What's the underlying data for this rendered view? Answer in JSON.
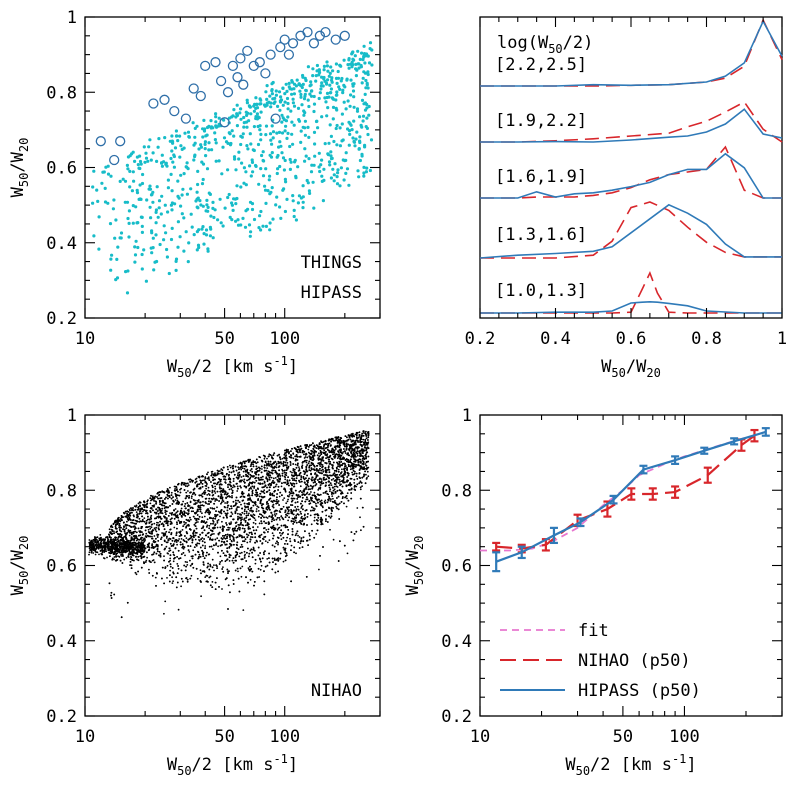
{
  "colors": {
    "things": "#2f6fa8",
    "hipass": "#17bcc8",
    "nihao_red": "#d8262b",
    "hipass_blue": "#2f7ab8",
    "fit": "#e777cf",
    "nihao_pts": "#000000"
  },
  "chart_data": [
    {
      "type": "scatter",
      "panel": "top-left",
      "xscale": "log",
      "xlim": [
        10,
        300
      ],
      "ylim": [
        0.2,
        1.0
      ],
      "xticks": [
        "10",
        "50",
        "100"
      ],
      "yticks": [
        "0.2",
        "0.4",
        "0.6",
        "0.8",
        "1"
      ],
      "xlabel": "W50/2 [km s-1]",
      "ylabel": "W50/W20",
      "legend": [
        "THINGS",
        "HIPASS"
      ],
      "series": [
        {
          "name": "THINGS",
          "marker": "open-circle",
          "x": [
            12,
            14,
            15,
            22,
            25,
            28,
            32,
            35,
            38,
            40,
            45,
            48,
            50,
            52,
            55,
            58,
            60,
            62,
            65,
            70,
            75,
            80,
            85,
            90,
            95,
            100,
            105,
            110,
            120,
            130,
            140,
            150,
            160,
            180,
            200
          ],
          "y": [
            0.67,
            0.62,
            0.67,
            0.77,
            0.78,
            0.75,
            0.73,
            0.81,
            0.79,
            0.87,
            0.88,
            0.83,
            0.72,
            0.8,
            0.87,
            0.84,
            0.89,
            0.82,
            0.91,
            0.87,
            0.88,
            0.85,
            0.9,
            0.73,
            0.92,
            0.94,
            0.9,
            0.93,
            0.95,
            0.96,
            0.93,
            0.95,
            0.96,
            0.94,
            0.95
          ]
        },
        {
          "name": "HIPASS",
          "marker": "dot",
          "x": [],
          "y": [],
          "note": "dense cloud of small cyan points"
        }
      ]
    },
    {
      "type": "line",
      "panel": "top-right",
      "xlim": [
        0.2,
        1.0
      ],
      "xticks": [
        "0.2",
        "0.4",
        "0.6",
        "0.8",
        "1"
      ],
      "xlabel": "W50/W20",
      "header": "log(W50/2)",
      "bins": [
        {
          "label": "[2.2,2.5]",
          "x": [
            0.2,
            0.3,
            0.4,
            0.5,
            0.6,
            0.7,
            0.8,
            0.85,
            0.9,
            0.95,
            1.0
          ],
          "nihao": [
            0.0,
            0.0,
            0.0,
            0.0,
            0.01,
            0.02,
            0.06,
            0.12,
            0.3,
            1.0,
            0.4
          ],
          "hipass": [
            0.0,
            0.0,
            0.0,
            0.02,
            0.01,
            0.02,
            0.06,
            0.15,
            0.35,
            0.98,
            0.45
          ]
        },
        {
          "label": "[1.9,2.2]",
          "x": [
            0.2,
            0.3,
            0.4,
            0.5,
            0.6,
            0.7,
            0.75,
            0.8,
            0.85,
            0.9,
            0.95,
            1.0
          ],
          "nihao": [
            0.0,
            0.0,
            0.03,
            0.08,
            0.15,
            0.22,
            0.38,
            0.52,
            0.75,
            1.0,
            0.32,
            0.0
          ],
          "hipass": [
            0.0,
            0.0,
            0.01,
            0.0,
            0.05,
            0.12,
            0.15,
            0.25,
            0.45,
            0.82,
            0.2,
            0.1
          ]
        },
        {
          "label": "[1.6,1.9]",
          "x": [
            0.2,
            0.3,
            0.35,
            0.4,
            0.45,
            0.5,
            0.55,
            0.6,
            0.65,
            0.7,
            0.75,
            0.8,
            0.85,
            0.9,
            0.95,
            1.0
          ],
          "nihao": [
            0.0,
            0.0,
            0.02,
            0.02,
            0.02,
            0.05,
            0.1,
            0.2,
            0.35,
            0.45,
            0.5,
            0.55,
            0.98,
            0.15,
            0.0,
            0.0
          ],
          "hipass": [
            0.0,
            0.0,
            0.12,
            0.02,
            0.08,
            0.1,
            0.15,
            0.22,
            0.3,
            0.45,
            0.55,
            0.55,
            0.85,
            0.58,
            0.0,
            0.0
          ]
        },
        {
          "label": "[1.3,1.6]",
          "x": [
            0.2,
            0.3,
            0.4,
            0.5,
            0.55,
            0.6,
            0.65,
            0.7,
            0.75,
            0.8,
            0.85,
            0.9,
            1.0
          ],
          "nihao": [
            0.0,
            0.0,
            0.0,
            0.05,
            0.3,
            0.9,
            1.0,
            0.85,
            0.55,
            0.28,
            0.1,
            0.02,
            0.02
          ],
          "hipass": [
            0.0,
            0.05,
            0.08,
            0.12,
            0.2,
            0.45,
            0.7,
            0.95,
            0.8,
            0.6,
            0.25,
            0.02,
            0.02
          ]
        },
        {
          "label": "[1.0,1.3]",
          "x": [
            0.2,
            0.3,
            0.4,
            0.5,
            0.55,
            0.6,
            0.63,
            0.65,
            0.67,
            0.7,
            0.75,
            0.8,
            0.9,
            1.0
          ],
          "nihao": [
            0.0,
            0.0,
            0.0,
            0.0,
            0.0,
            0.02,
            0.6,
            1.0,
            0.5,
            0.02,
            0.0,
            0.0,
            0.0,
            0.0
          ],
          "hipass": [
            0.0,
            0.0,
            0.02,
            0.02,
            0.05,
            0.25,
            0.27,
            0.28,
            0.27,
            0.24,
            0.18,
            0.05,
            0.0,
            0.0
          ]
        }
      ]
    },
    {
      "type": "scatter",
      "panel": "bottom-left",
      "xscale": "log",
      "xlim": [
        10,
        300
      ],
      "ylim": [
        0.2,
        1.0
      ],
      "xticks": [
        "10",
        "50",
        "100"
      ],
      "yticks": [
        "0.2",
        "0.4",
        "0.6",
        "0.8",
        "1"
      ],
      "xlabel": "W50/2 [km s-1]",
      "ylabel": "W50/W20",
      "legend": [
        "NIHAO"
      ],
      "series": [
        {
          "name": "NIHAO",
          "marker": "dot",
          "x": [],
          "y": [],
          "note": "dense cloud of small black points"
        }
      ]
    },
    {
      "type": "line",
      "panel": "bottom-right",
      "xscale": "log",
      "xlim": [
        10,
        300
      ],
      "ylim": [
        0.2,
        1.0
      ],
      "xticks": [
        "10",
        "50",
        "100"
      ],
      "yticks": [
        "0.2",
        "0.4",
        "0.6",
        "0.8",
        "1"
      ],
      "xlabel": "W50/2 [km s-1]",
      "ylabel": "W50/W20",
      "legend": [
        "fit",
        "NIHAO (p50)",
        "HIPASS (p50)"
      ],
      "series": [
        {
          "name": "fit",
          "x": [
            10,
            14,
            18,
            22,
            30,
            40,
            50,
            60,
            80,
            100,
            150,
            200,
            250
          ],
          "y": [
            0.64,
            0.64,
            0.645,
            0.66,
            0.7,
            0.76,
            0.8,
            0.84,
            0.87,
            0.89,
            0.92,
            0.94,
            0.955
          ]
        },
        {
          "name": "NIHAO (p50)",
          "x": [
            12,
            16,
            21,
            30,
            42,
            55,
            70,
            90,
            130,
            190,
            220
          ],
          "y": [
            0.65,
            0.645,
            0.655,
            0.72,
            0.75,
            0.79,
            0.79,
            0.795,
            0.84,
            0.92,
            0.945
          ],
          "err": [
            0.01,
            0.01,
            0.015,
            0.015,
            0.02,
            0.015,
            0.015,
            0.015,
            0.02,
            0.015,
            0.015
          ]
        },
        {
          "name": "HIPASS (p50)",
          "x": [
            12,
            16,
            23,
            31,
            45,
            63,
            90,
            125,
            175,
            250
          ],
          "y": [
            0.61,
            0.635,
            0.68,
            0.715,
            0.775,
            0.855,
            0.88,
            0.905,
            0.93,
            0.955
          ],
          "err": [
            0.025,
            0.015,
            0.02,
            0.01,
            0.01,
            0.01,
            0.01,
            0.008,
            0.008,
            0.01
          ]
        }
      ]
    }
  ],
  "labels": {
    "things": "THINGS",
    "hipass": "HIPASS",
    "nihao": "NIHAO",
    "fit": "fit",
    "nihao_p50": "NIHAO (p50)",
    "hipass_p50": "HIPASS (p50)",
    "xlabel_main": "W",
    "xlabel_sub": "50",
    "xlabel_rest": "/2 [km s",
    "xlabel_sup": "-1",
    "xlabel_end": "]",
    "ratio_w1": "W",
    "ratio_s1": "50",
    "ratio_mid": "/W",
    "ratio_s2": "20",
    "logbin_head": "log(W",
    "logbin_sub": "50",
    "logbin_tail": "/2)"
  }
}
